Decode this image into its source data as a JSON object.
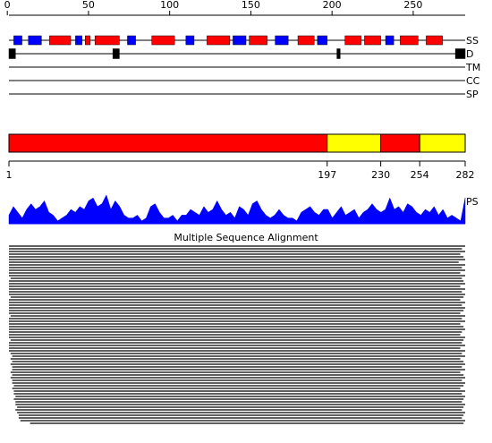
{
  "ruler": {
    "ticks": [
      0,
      50,
      100,
      150,
      200,
      250
    ]
  },
  "tracks": [
    {
      "label": "SS",
      "colors": {
        "H": "#ff0000",
        "E": "#0000ff"
      },
      "elements": [
        [
          4,
          9,
          "E"
        ],
        [
          13,
          21,
          "E"
        ],
        [
          26,
          39,
          "H"
        ],
        [
          42,
          46,
          "E"
        ],
        [
          48,
          51,
          "H"
        ],
        [
          54,
          69,
          "H"
        ],
        [
          74,
          79,
          "E"
        ],
        [
          89,
          103,
          "H"
        ],
        [
          110,
          115,
          "E"
        ],
        [
          123,
          137,
          "H"
        ],
        [
          139,
          147,
          "E"
        ],
        [
          149,
          160,
          "H"
        ],
        [
          165,
          173,
          "E"
        ],
        [
          179,
          189,
          "H"
        ],
        [
          191,
          197,
          "E"
        ],
        [
          208,
          218,
          "H"
        ],
        [
          220,
          230,
          "H"
        ],
        [
          233,
          238,
          "E"
        ],
        [
          242,
          253,
          "H"
        ],
        [
          258,
          268,
          "H"
        ]
      ]
    },
    {
      "label": "D",
      "color": "#000000",
      "elements": [
        [
          1,
          5
        ],
        [
          65,
          69
        ],
        [
          203,
          205
        ],
        [
          276,
          282
        ]
      ]
    },
    {
      "label": "TM",
      "elements": []
    },
    {
      "label": "CC",
      "elements": []
    },
    {
      "label": "SP",
      "elements": []
    }
  ],
  "domain_bar": {
    "boundaries": [
      1,
      197,
      230,
      254,
      282
    ],
    "colors": [
      "#ff0000",
      "#ffff00",
      "#ff0000",
      "#ffff00"
    ]
  },
  "ps": {
    "label": "PS",
    "color": "#0000ff",
    "values": [
      0.3,
      0.6,
      0.4,
      0.2,
      0.5,
      0.7,
      0.5,
      0.6,
      0.8,
      0.4,
      0.3,
      0.1,
      0.2,
      0.3,
      0.5,
      0.4,
      0.6,
      0.5,
      0.8,
      0.9,
      0.6,
      0.7,
      1.0,
      0.5,
      0.8,
      0.6,
      0.3,
      0.2,
      0.2,
      0.3,
      0.1,
      0.2,
      0.6,
      0.7,
      0.4,
      0.2,
      0.2,
      0.3,
      0.1,
      0.3,
      0.3,
      0.5,
      0.4,
      0.3,
      0.6,
      0.4,
      0.5,
      0.8,
      0.5,
      0.3,
      0.4,
      0.2,
      0.6,
      0.5,
      0.3,
      0.7,
      0.8,
      0.5,
      0.3,
      0.2,
      0.3,
      0.5,
      0.3,
      0.2,
      0.2,
      0.1,
      0.4,
      0.5,
      0.6,
      0.4,
      0.3,
      0.5,
      0.5,
      0.2,
      0.4,
      0.6,
      0.3,
      0.4,
      0.5,
      0.2,
      0.4,
      0.5,
      0.7,
      0.5,
      0.4,
      0.5,
      0.9,
      0.5,
      0.6,
      0.4,
      0.7,
      0.6,
      0.4,
      0.3,
      0.5,
      0.4,
      0.6,
      0.3,
      0.5,
      0.2,
      0.3,
      0.2,
      0.1,
      0.9
    ]
  },
  "alignment": {
    "title": "Multiple Sequence Alignment",
    "rows": [
      [
        1,
        282
      ],
      [
        1,
        280
      ],
      [
        1,
        282
      ],
      [
        1,
        279
      ],
      [
        1,
        281
      ],
      [
        1,
        282
      ],
      [
        1,
        278
      ],
      [
        1,
        282
      ],
      [
        1,
        280
      ],
      [
        1,
        282
      ],
      [
        1,
        279
      ],
      [
        1,
        282
      ],
      [
        2,
        280
      ],
      [
        1,
        281
      ],
      [
        1,
        282
      ],
      [
        1,
        279
      ],
      [
        1,
        282
      ],
      [
        1,
        280
      ],
      [
        1,
        282
      ],
      [
        2,
        281
      ],
      [
        1,
        279
      ],
      [
        1,
        282
      ],
      [
        1,
        280
      ],
      [
        1,
        282
      ],
      [
        1,
        281
      ],
      [
        1,
        279
      ],
      [
        2,
        282
      ],
      [
        1,
        280
      ],
      [
        1,
        282
      ],
      [
        1,
        279
      ],
      [
        1,
        281
      ],
      [
        1,
        282
      ],
      [
        1,
        280
      ],
      [
        1,
        279
      ],
      [
        1,
        282
      ],
      [
        2,
        281
      ],
      [
        1,
        280
      ],
      [
        1,
        282
      ],
      [
        1,
        279
      ],
      [
        1,
        282
      ],
      [
        2,
        280
      ],
      [
        3,
        282
      ],
      [
        2,
        279
      ],
      [
        3,
        281
      ],
      [
        2,
        282
      ],
      [
        3,
        280
      ],
      [
        3,
        282
      ],
      [
        2,
        279
      ],
      [
        3,
        281
      ],
      [
        2,
        282
      ],
      [
        3,
        280
      ],
      [
        3,
        282
      ],
      [
        4,
        281
      ],
      [
        3,
        279
      ],
      [
        4,
        282
      ],
      [
        4,
        280
      ],
      [
        5,
        282
      ],
      [
        4,
        281
      ],
      [
        5,
        280
      ],
      [
        5,
        282
      ],
      [
        6,
        281
      ],
      [
        5,
        280
      ],
      [
        6,
        282
      ],
      [
        7,
        281
      ],
      [
        7,
        280
      ],
      [
        8,
        282
      ],
      [
        14,
        281
      ]
    ]
  }
}
